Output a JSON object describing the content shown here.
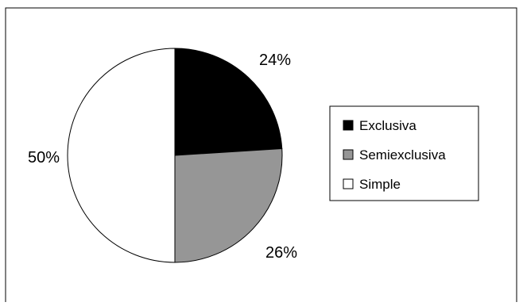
{
  "chart_data": {
    "type": "pie",
    "series": [
      {
        "values": [
          24,
          26,
          50
        ],
        "categories": [
          "Exclusiva",
          "Semiexclusiva",
          "Simple"
        ]
      }
    ],
    "data_labels": [
      "24%",
      "26%",
      "50%"
    ],
    "colors": {
      "Exclusiva": "#000000",
      "Semiexclusiva": "#969696",
      "Simple": "#ffffff"
    },
    "legend": {
      "placement": "right",
      "items": [
        "Exclusiva",
        "Semiexclusiva",
        "Simple"
      ]
    },
    "start_direction": "top",
    "direction": "clockwise",
    "title": ""
  }
}
